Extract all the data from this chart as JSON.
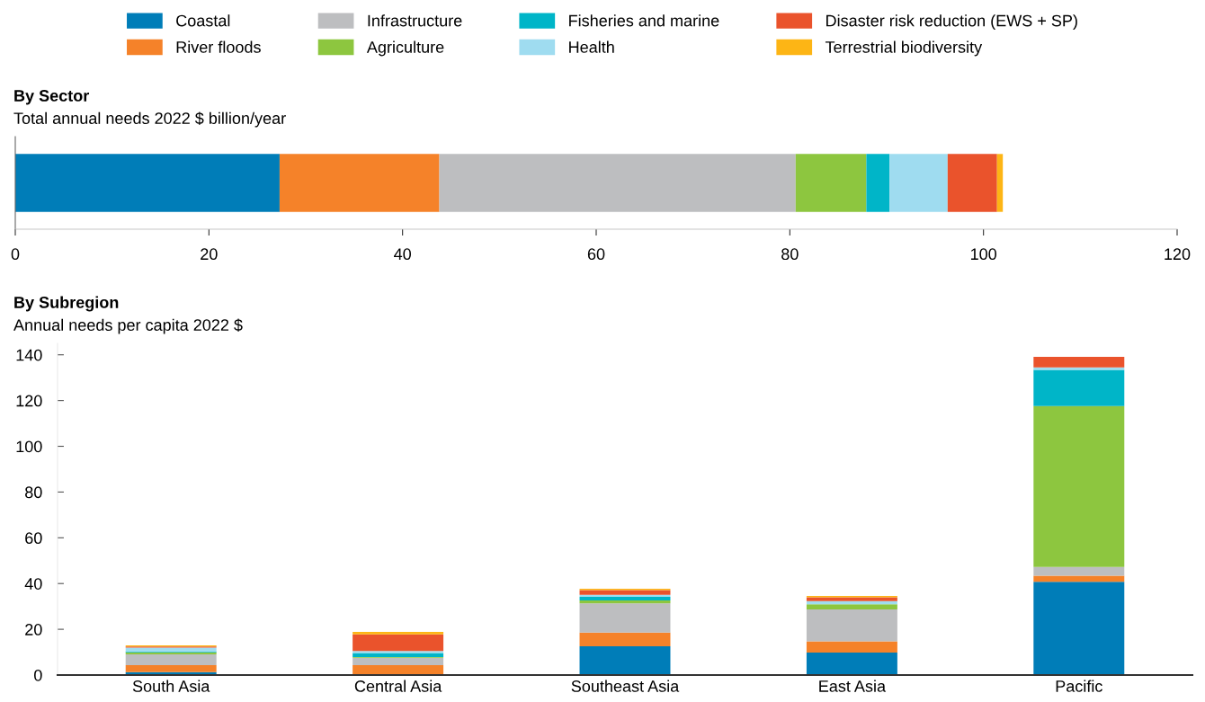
{
  "chart_data": [
    {
      "type": "bar",
      "orientation": "horizontal",
      "stacked": true,
      "title": "By Sector",
      "subtitle": "Total annual needs 2022 $ billion/year",
      "categories": [
        null
      ],
      "xlim": [
        0,
        120
      ],
      "xticks": [
        0,
        20,
        40,
        60,
        80,
        100,
        120
      ],
      "legend": "top",
      "grid": false,
      "series": [
        {
          "name": "Coastal",
          "color": "#007db8",
          "values": [
            27.3
          ]
        },
        {
          "name": "River floods",
          "color": "#f58229",
          "values": [
            16.5
          ]
        },
        {
          "name": "Infrastructure",
          "color": "#bdbec0",
          "values": [
            36.8
          ]
        },
        {
          "name": "Agriculture",
          "color": "#8dc63f",
          "values": [
            7.3
          ]
        },
        {
          "name": "Fisheries and marine",
          "color": "#00b5c8",
          "values": [
            2.4
          ]
        },
        {
          "name": "Health",
          "color": "#9fdcf0",
          "values": [
            6.0
          ]
        },
        {
          "name": "Disaster risk reduction (EWS + SP)",
          "color": "#ea532c",
          "values": [
            5.1
          ]
        },
        {
          "name": "Terrestrial biodiversity",
          "color": "#fdb515",
          "values": [
            0.6
          ]
        }
      ]
    },
    {
      "type": "bar",
      "stacked": true,
      "title": "By Subregion",
      "subtitle": "Annual needs per capita 2022 $",
      "categories": [
        "South Asia",
        "Central Asia",
        "Southeast Asia",
        "East Asia",
        "Pacific"
      ],
      "ylim": [
        0,
        145
      ],
      "yticks": [
        0,
        20,
        40,
        60,
        80,
        100,
        120,
        140
      ],
      "grid": false,
      "series": [
        {
          "color": "#007db8",
          "values": [
            1.3,
            null,
            12.6,
            9.8,
            40.8
          ]
        },
        {
          "color": "#f58229",
          "values": [
            3.0,
            4.3,
            6.0,
            4.9,
            2.6
          ]
        },
        {
          "color": "#bdbec0",
          "values": [
            4.7,
            3.3,
            12.7,
            14.0,
            3.9
          ]
        },
        {
          "color": "#8dc63f",
          "values": [
            0.9,
            0.3,
            1.3,
            2.2,
            70.3
          ]
        },
        {
          "color": "#00b5c8",
          "values": [
            0.4,
            1.7,
            1.6,
            null,
            15.8
          ]
        },
        {
          "color": "#9fdcf0",
          "values": [
            1.7,
            0.9,
            0.9,
            1.4,
            1.1
          ]
        },
        {
          "color": "#ea532c",
          "values": [
            0.5,
            7.3,
            2.0,
            1.7,
            4.6
          ]
        },
        {
          "color": "#fdb515",
          "values": [
            0.5,
            1.1,
            0.6,
            0.6,
            0.0
          ]
        }
      ]
    }
  ]
}
